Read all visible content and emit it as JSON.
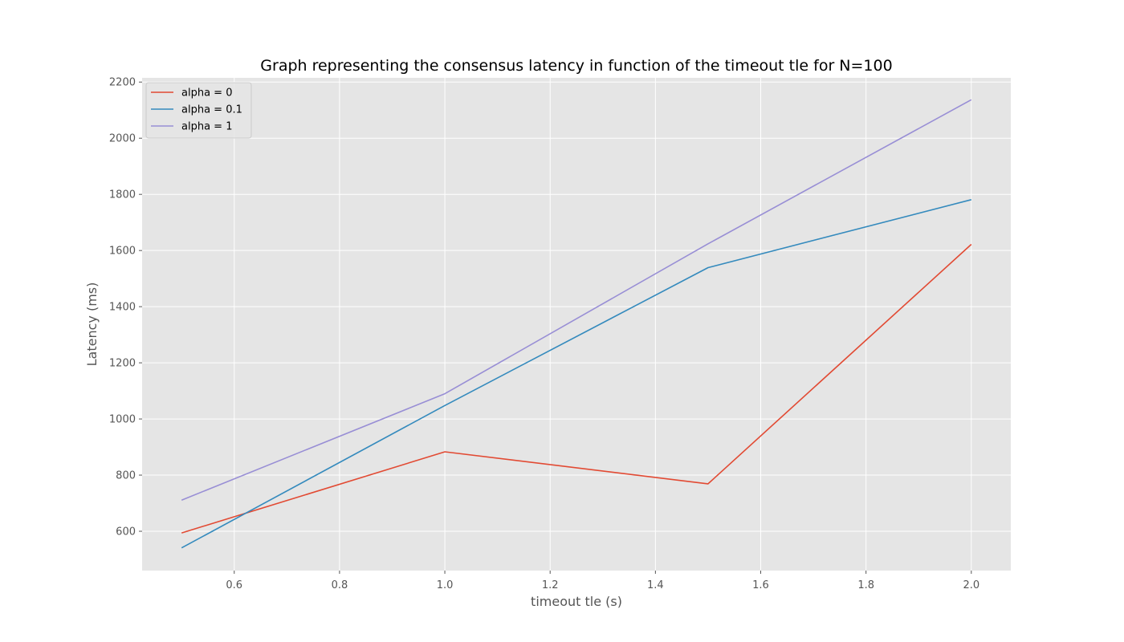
{
  "chart_data": {
    "type": "line",
    "title": "Graph representing the consensus latency in function of the timeout tle for N=100",
    "xlabel": "timeout tle (s)",
    "ylabel": "Latency (ms)",
    "x": [
      0.5,
      1.0,
      1.5,
      2.0
    ],
    "xlim": [
      0.425,
      2.075
    ],
    "ylim": [
      460,
      2215
    ],
    "xticks": [
      0.6,
      0.8,
      1.0,
      1.2,
      1.4,
      1.6,
      1.8,
      2.0
    ],
    "xtick_labels": [
      "0.6",
      "0.8",
      "1.0",
      "1.2",
      "1.4",
      "1.6",
      "1.8",
      "2.0"
    ],
    "yticks": [
      600,
      800,
      1000,
      1200,
      1400,
      1600,
      1800,
      2000,
      2200
    ],
    "ytick_labels": [
      "600",
      "800",
      "1000",
      "1200",
      "1400",
      "1600",
      "1800",
      "2000",
      "2200"
    ],
    "grid": true,
    "legend_position": "top-left",
    "series": [
      {
        "name": "alpha = 0",
        "values": [
          594,
          883,
          769,
          1622
        ],
        "color": "#E24A33"
      },
      {
        "name": "alpha = 0.1",
        "values": [
          541,
          1048,
          1539,
          1781
        ],
        "color": "#348ABD"
      },
      {
        "name": "alpha = 1",
        "values": [
          711,
          1090,
          1624,
          2137
        ],
        "color": "#988ED5"
      }
    ],
    "plot_background": "#E5E5E5"
  }
}
